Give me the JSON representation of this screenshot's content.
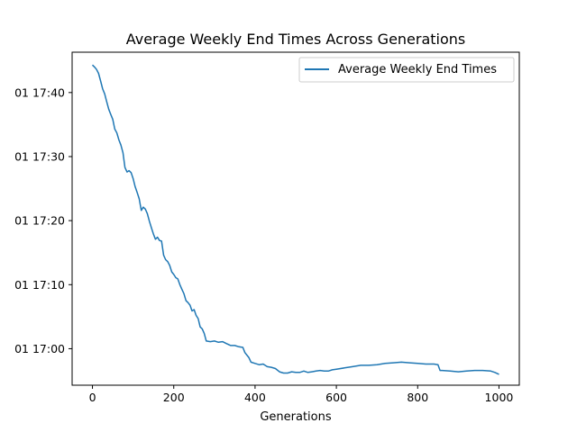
{
  "chart_data": {
    "type": "line",
    "title": "Average Weekly End Times Across Generations",
    "xlabel": "Generations",
    "ylabel": "",
    "xlim": [
      -50,
      1050
    ],
    "ylim_minutes": [
      1014.3,
      1066.3
    ],
    "x_ticks": [
      0,
      200,
      400,
      600,
      800,
      1000
    ],
    "y_ticks": [
      {
        "value": 1020,
        "label": "01 17:00"
      },
      {
        "value": 1030,
        "label": "01 17:10"
      },
      {
        "value": 1040,
        "label": "01 17:20"
      },
      {
        "value": 1050,
        "label": "01 17:30"
      },
      {
        "value": 1060,
        "label": "01 17:40"
      }
    ],
    "grid": false,
    "legend": {
      "position": "top-right",
      "entries": [
        "Average Weekly End Times"
      ]
    },
    "series": [
      {
        "name": "Average Weekly End Times",
        "color": "#1f77b4",
        "x": [
          0,
          5,
          10,
          15,
          20,
          25,
          30,
          35,
          40,
          45,
          50,
          55,
          60,
          65,
          70,
          75,
          80,
          85,
          90,
          95,
          100,
          105,
          110,
          115,
          120,
          125,
          130,
          135,
          140,
          145,
          150,
          155,
          160,
          165,
          170,
          175,
          180,
          185,
          190,
          195,
          200,
          205,
          210,
          215,
          220,
          225,
          230,
          235,
          240,
          245,
          250,
          255,
          260,
          265,
          270,
          275,
          280,
          290,
          300,
          310,
          320,
          330,
          340,
          350,
          360,
          370,
          375,
          380,
          385,
          390,
          400,
          410,
          420,
          430,
          440,
          450,
          460,
          470,
          480,
          490,
          500,
          510,
          520,
          530,
          540,
          550,
          560,
          570,
          580,
          590,
          600,
          620,
          640,
          660,
          680,
          700,
          720,
          740,
          760,
          780,
          800,
          820,
          840,
          850,
          855,
          860,
          880,
          900,
          920,
          940,
          960,
          980,
          990,
          1000
        ],
        "y": [
          1064.3,
          1064.0,
          1063.6,
          1063.0,
          1061.8,
          1060.6,
          1059.8,
          1058.6,
          1057.4,
          1056.6,
          1055.8,
          1054.3,
          1053.7,
          1052.6,
          1051.8,
          1050.6,
          1048.3,
          1047.6,
          1047.8,
          1047.5,
          1046.6,
          1045.3,
          1044.4,
          1043.4,
          1041.6,
          1042.1,
          1041.8,
          1041.1,
          1039.9,
          1038.9,
          1037.9,
          1037.1,
          1037.4,
          1036.9,
          1036.8,
          1034.6,
          1033.9,
          1033.6,
          1033.0,
          1032.0,
          1031.6,
          1031.1,
          1030.9,
          1030.0,
          1029.3,
          1028.6,
          1027.5,
          1027.2,
          1026.8,
          1025.9,
          1026.1,
          1025.2,
          1024.7,
          1023.4,
          1023.1,
          1022.4,
          1021.2,
          1021.1,
          1021.2,
          1021.0,
          1021.1,
          1020.8,
          1020.5,
          1020.5,
          1020.3,
          1020.2,
          1019.4,
          1019.0,
          1018.6,
          1017.9,
          1017.7,
          1017.5,
          1017.6,
          1017.2,
          1017.1,
          1016.9,
          1016.4,
          1016.2,
          1016.2,
          1016.4,
          1016.3,
          1016.3,
          1016.5,
          1016.3,
          1016.4,
          1016.5,
          1016.6,
          1016.5,
          1016.5,
          1016.7,
          1016.8,
          1017.0,
          1017.2,
          1017.4,
          1017.4,
          1017.5,
          1017.7,
          1017.8,
          1017.9,
          1017.8,
          1017.7,
          1017.6,
          1017.6,
          1017.5,
          1016.6,
          1016.6,
          1016.5,
          1016.4,
          1016.5,
          1016.6,
          1016.6,
          1016.5,
          1016.3,
          1016.0
        ]
      }
    ]
  }
}
